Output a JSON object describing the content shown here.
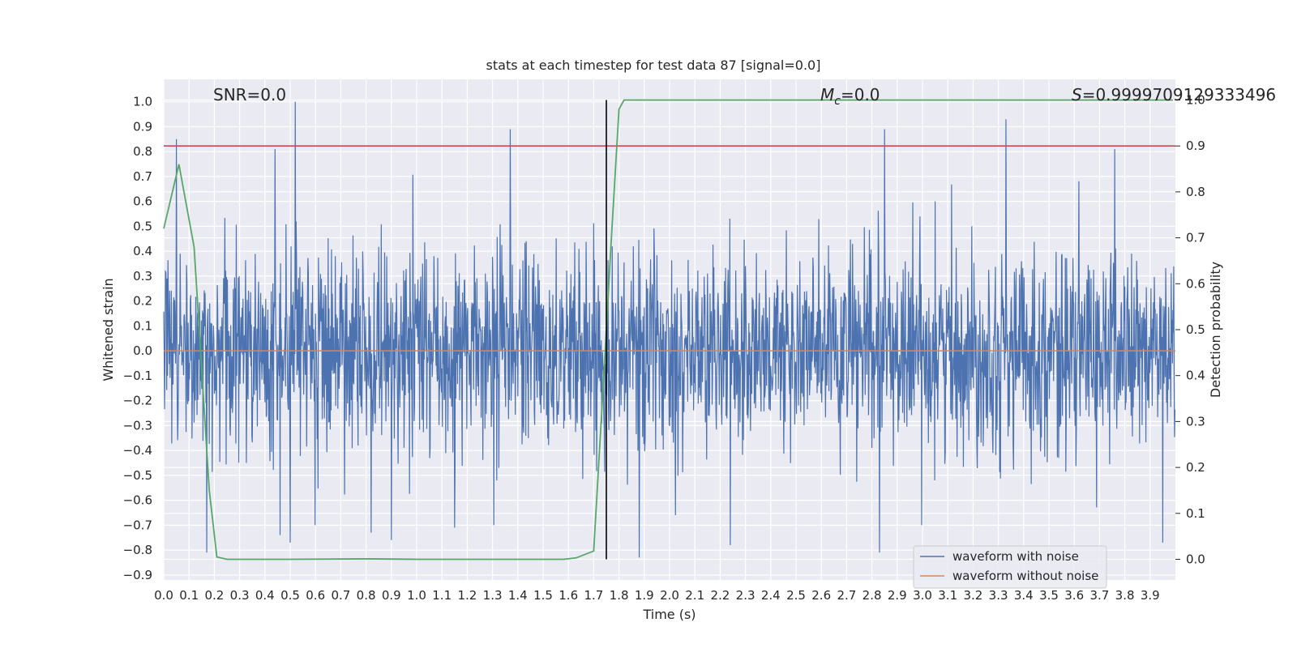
{
  "chart_data": {
    "type": "line",
    "title": "stats at each timestep for test data 87 [signal=0.0]",
    "xlabel": "Time (s)",
    "ylabel": "Whitened strain",
    "y2label": "Detection probability",
    "xlim": [
      0.0,
      4.0
    ],
    "ylim": [
      -0.92,
      1.09
    ],
    "y2lim": [
      -0.045,
      1.045
    ],
    "x_ticks": [
      0.0,
      0.1,
      0.2,
      0.3,
      0.4,
      0.5,
      0.6,
      0.7,
      0.8,
      0.9,
      1.0,
      1.1,
      1.2,
      1.3,
      1.4,
      1.5,
      1.6,
      1.7,
      1.8,
      1.9,
      2.0,
      2.1,
      2.2,
      2.3,
      2.4,
      2.5,
      2.6,
      2.7,
      2.8,
      2.9,
      3.0,
      3.1,
      3.2,
      3.3,
      3.4,
      3.5,
      3.6,
      3.7,
      3.8,
      3.9
    ],
    "y_ticks": [
      1.0,
      0.9,
      0.8,
      0.7,
      0.6,
      0.5,
      0.4,
      0.3,
      0.2,
      0.1,
      0.0,
      -0.1,
      -0.2,
      -0.3,
      -0.4,
      -0.5,
      -0.6,
      -0.7,
      -0.8,
      -0.9
    ],
    "y2_ticks": [
      1.0,
      0.9,
      0.8,
      0.7,
      0.6,
      0.5,
      0.4,
      0.3,
      0.2,
      0.1,
      0.0
    ],
    "annotations": {
      "snr": "SNR=0.0",
      "mc_sym": "M",
      "mc_sub": "c",
      "mc_val": "=0.0",
      "s_sym": "S",
      "s_val": "=0.9999709129333496"
    },
    "legend": {
      "placement": "lower-right",
      "entries": [
        "waveform with noise",
        "waveform without noise"
      ]
    },
    "noise_series": {
      "name": "waveform with noise",
      "color": "#4c72b0",
      "description": "dense whitened strain noise sampled over 0-4 s",
      "sample_rate": 600,
      "std": 0.2,
      "peaks": [
        {
          "x": 0.44,
          "y": 0.81
        },
        {
          "x": 0.52,
          "y": 1.0
        },
        {
          "x": 0.46,
          "y": -0.74
        },
        {
          "x": 0.5,
          "y": -0.77
        },
        {
          "x": 1.37,
          "y": 0.89
        },
        {
          "x": 2.85,
          "y": 0.89
        },
        {
          "x": 3.33,
          "y": 0.93
        },
        {
          "x": 3.76,
          "y": 0.81
        },
        {
          "x": 2.83,
          "y": -0.81
        },
        {
          "x": 1.88,
          "y": -0.83
        },
        {
          "x": 3.95,
          "y": -0.77
        },
        {
          "x": 0.05,
          "y": 0.85
        },
        {
          "x": 0.17,
          "y": -0.81
        },
        {
          "x": 0.82,
          "y": -0.73
        },
        {
          "x": 0.9,
          "y": -0.76
        },
        {
          "x": 1.15,
          "y": -0.71
        },
        {
          "x": 2.24,
          "y": -0.78
        },
        {
          "x": 3.05,
          "y": 0.6
        }
      ]
    },
    "clean_series": {
      "name": "waveform without noise",
      "color": "#dd8452",
      "x": [
        0.0,
        4.0
      ],
      "y": [
        0.0,
        0.0
      ]
    },
    "probability_series": {
      "name": "detection probability",
      "color": "#55a868",
      "axis": "right",
      "x": [
        0.0,
        0.06,
        0.12,
        0.18,
        0.21,
        0.25,
        0.3,
        0.5,
        0.8,
        1.0,
        1.2,
        1.4,
        1.58,
        1.63,
        1.7,
        1.74,
        1.77,
        1.8,
        1.82,
        2.0,
        3.0,
        3.99
      ],
      "y": [
        0.72,
        0.86,
        0.68,
        0.15,
        0.005,
        0.0,
        0.0,
        0.0,
        0.001,
        0.0,
        0.0,
        0.0,
        0.0,
        0.003,
        0.018,
        0.4,
        0.7,
        0.98,
        1.0,
        1.0,
        1.0,
        1.0
      ]
    },
    "threshold": {
      "axis": "right",
      "value": 0.9,
      "color": "#c44e52"
    },
    "marker_line": {
      "x": 1.75,
      "y2_from": 0.0,
      "y2_to": 1.0,
      "color": "#000000"
    }
  }
}
